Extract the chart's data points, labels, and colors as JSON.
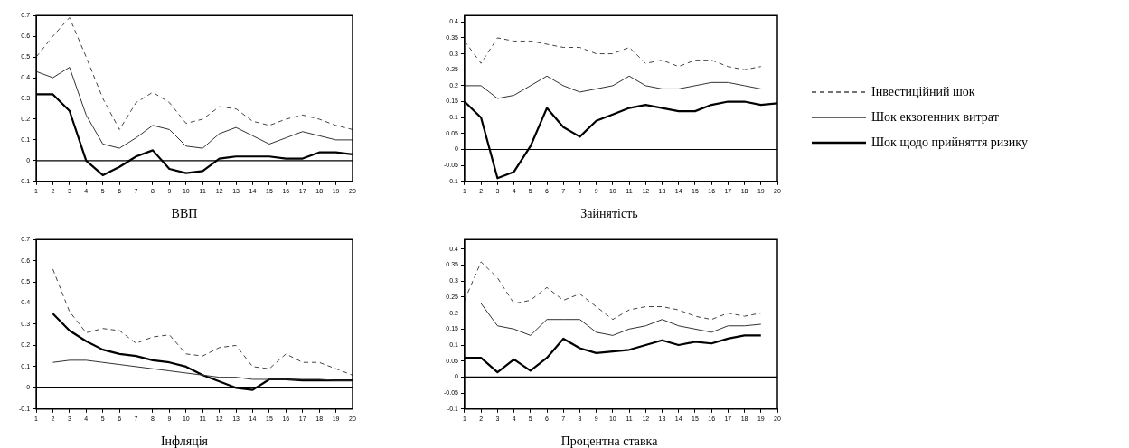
{
  "chart_data": [
    {
      "type": "line",
      "title": "ВВП",
      "x": [
        1,
        2,
        3,
        4,
        5,
        6,
        7,
        8,
        9,
        10,
        11,
        12,
        13,
        14,
        15,
        16,
        17,
        18,
        19,
        20
      ],
      "xlim": [
        1,
        20
      ],
      "xticks": [
        1,
        2,
        3,
        4,
        5,
        6,
        7,
        8,
        9,
        10,
        11,
        12,
        13,
        14,
        15,
        16,
        17,
        18,
        19,
        20
      ],
      "ylim": [
        -0.1,
        0.7
      ],
      "yticks": [
        -0.1,
        0,
        0.1,
        0.2,
        0.3,
        0.4,
        0.5,
        0.6,
        0.7
      ],
      "grid": false,
      "legend": false,
      "marker": "none",
      "ref_lines": [
        {
          "axis": "y",
          "value": 0
        }
      ],
      "series": [
        {
          "color": "#444444",
          "line_style": "dashed",
          "values": [
            0.5,
            0.6,
            0.69,
            0.5,
            0.3,
            0.15,
            0.28,
            0.33,
            0.28,
            0.18,
            0.2,
            0.26,
            0.25,
            0.19,
            0.17,
            0.2,
            0.22,
            0.2,
            0.17,
            0.15
          ]
        },
        {
          "color": "#333333",
          "line_style": "solid",
          "values": [
            0.43,
            0.4,
            0.45,
            0.22,
            0.08,
            0.06,
            0.11,
            0.17,
            0.15,
            0.07,
            0.06,
            0.13,
            0.16,
            0.12,
            0.08,
            0.11,
            0.14,
            0.12,
            0.1,
            0.1
          ]
        },
        {
          "color": "#000000",
          "line_style": "solid",
          "values": [
            0.32,
            0.32,
            0.24,
            0.0,
            -0.07,
            -0.03,
            0.02,
            0.05,
            -0.04,
            -0.06,
            -0.05,
            0.01,
            0.02,
            0.02,
            0.02,
            0.01,
            0.01,
            0.04,
            0.04,
            0.03
          ]
        }
      ]
    },
    {
      "type": "line",
      "title": "Зайнятість",
      "x": [
        1,
        2,
        3,
        4,
        5,
        6,
        7,
        8,
        9,
        10,
        11,
        12,
        13,
        14,
        15,
        16,
        17,
        18,
        19,
        20
      ],
      "xlim": [
        1,
        20
      ],
      "xticks": [
        1,
        2,
        3,
        4,
        5,
        6,
        7,
        8,
        9,
        10,
        11,
        12,
        13,
        14,
        15,
        16,
        17,
        18,
        19,
        20
      ],
      "ylim": [
        -0.1,
        0.42
      ],
      "yticks": [
        -0.1,
        -0.05,
        0,
        0.05,
        0.1,
        0.15,
        0.2,
        0.25,
        0.3,
        0.35,
        0.4
      ],
      "grid": false,
      "legend": "right",
      "marker": "none",
      "ref_lines": [
        {
          "axis": "y",
          "value": 0
        }
      ],
      "series": [
        {
          "name": "Інвестиційний шок",
          "color": "#444444",
          "line_style": "dashed",
          "values": [
            0.34,
            0.27,
            0.35,
            0.34,
            0.34,
            0.33,
            0.32,
            0.32,
            0.3,
            0.3,
            0.32,
            0.27,
            0.28,
            0.26,
            0.28,
            0.28,
            0.26,
            0.25,
            0.26,
            null
          ]
        },
        {
          "name": "Шок екзогенних витрат",
          "color": "#333333",
          "line_style": "solid",
          "values": [
            0.2,
            0.2,
            0.16,
            0.17,
            0.2,
            0.23,
            0.2,
            0.18,
            0.19,
            0.2,
            0.23,
            0.2,
            0.19,
            0.19,
            0.2,
            0.21,
            0.21,
            0.2,
            0.19,
            null
          ]
        },
        {
          "name": "Шок щодо прийняття ризику",
          "color": "#000000",
          "line_style": "solid",
          "values": [
            0.15,
            0.1,
            -0.09,
            -0.07,
            0.01,
            0.13,
            0.07,
            0.04,
            0.09,
            0.11,
            0.13,
            0.14,
            0.13,
            0.12,
            0.12,
            0.14,
            0.15,
            0.15,
            0.14,
            0.145
          ]
        }
      ]
    },
    {
      "type": "line",
      "title": "Інфляція",
      "x": [
        2,
        3,
        4,
        5,
        6,
        7,
        8,
        9,
        10,
        11,
        12,
        13,
        14,
        15,
        16,
        17,
        18,
        19,
        20
      ],
      "xlim": [
        1,
        20
      ],
      "xticks": [
        1,
        2,
        3,
        4,
        5,
        6,
        7,
        8,
        9,
        10,
        11,
        12,
        13,
        14,
        15,
        16,
        17,
        18,
        19,
        20
      ],
      "ylim": [
        -0.1,
        0.7
      ],
      "yticks": [
        -0.1,
        0,
        0.1,
        0.2,
        0.3,
        0.4,
        0.5,
        0.6,
        0.7
      ],
      "grid": false,
      "legend": false,
      "marker": "none",
      "ref_lines": [
        {
          "axis": "y",
          "value": 0
        }
      ],
      "series": [
        {
          "color": "#444444",
          "line_style": "dashed",
          "values": [
            0.56,
            0.36,
            0.26,
            0.28,
            0.27,
            0.21,
            0.24,
            0.25,
            0.16,
            0.15,
            0.19,
            0.2,
            0.1,
            0.09,
            0.16,
            0.12,
            0.12,
            0.09,
            0.06
          ]
        },
        {
          "color": "#333333",
          "line_style": "solid",
          "values": [
            0.12,
            0.13,
            0.13,
            0.12,
            0.11,
            0.1,
            0.09,
            0.08,
            0.07,
            0.06,
            0.05,
            0.05,
            0.04,
            0.04,
            0.04,
            0.04,
            0.04,
            0.035,
            0.035
          ]
        },
        {
          "color": "#000000",
          "line_style": "solid",
          "values": [
            0.35,
            0.27,
            0.22,
            0.18,
            0.16,
            0.15,
            0.13,
            0.12,
            0.1,
            0.06,
            0.03,
            0.0,
            -0.01,
            0.04,
            0.04,
            0.035,
            0.035,
            0.035,
            0.035
          ]
        }
      ]
    },
    {
      "type": "line",
      "title": "Процентна ставка",
      "x": [
        1,
        2,
        3,
        4,
        5,
        6,
        7,
        8,
        9,
        10,
        11,
        12,
        13,
        14,
        15,
        16,
        17,
        18,
        19
      ],
      "xlim": [
        1,
        20
      ],
      "xticks": [
        1,
        2,
        3,
        4,
        5,
        6,
        7,
        8,
        9,
        10,
        11,
        12,
        13,
        14,
        15,
        16,
        17,
        18,
        19,
        20
      ],
      "ylim": [
        -0.1,
        0.43
      ],
      "yticks": [
        -0.1,
        -0.05,
        0,
        0.05,
        0.1,
        0.15,
        0.2,
        0.25,
        0.3,
        0.35,
        0.4
      ],
      "grid": false,
      "legend": false,
      "marker": "none",
      "ref_lines": [
        {
          "axis": "y",
          "value": 0
        }
      ],
      "series": [
        {
          "color": "#444444",
          "line_style": "dashed",
          "values": [
            0.24,
            0.36,
            0.31,
            0.23,
            0.24,
            0.28,
            0.24,
            0.26,
            0.22,
            0.18,
            0.21,
            0.22,
            0.22,
            0.21,
            0.19,
            0.18,
            0.2,
            0.19,
            0.2
          ]
        },
        {
          "color": "#333333",
          "line_style": "solid",
          "values": [
            null,
            0.23,
            0.16,
            0.15,
            0.13,
            0.18,
            0.18,
            0.18,
            0.14,
            0.13,
            0.15,
            0.16,
            0.18,
            0.16,
            0.15,
            0.14,
            0.16,
            0.16,
            0.165
          ]
        },
        {
          "color": "#000000",
          "line_style": "solid",
          "values": [
            0.06,
            0.06,
            0.015,
            0.055,
            0.02,
            0.06,
            0.12,
            0.09,
            0.075,
            0.08,
            0.085,
            0.1,
            0.115,
            0.1,
            0.11,
            0.105,
            0.12,
            0.13,
            0.13
          ]
        }
      ]
    }
  ]
}
